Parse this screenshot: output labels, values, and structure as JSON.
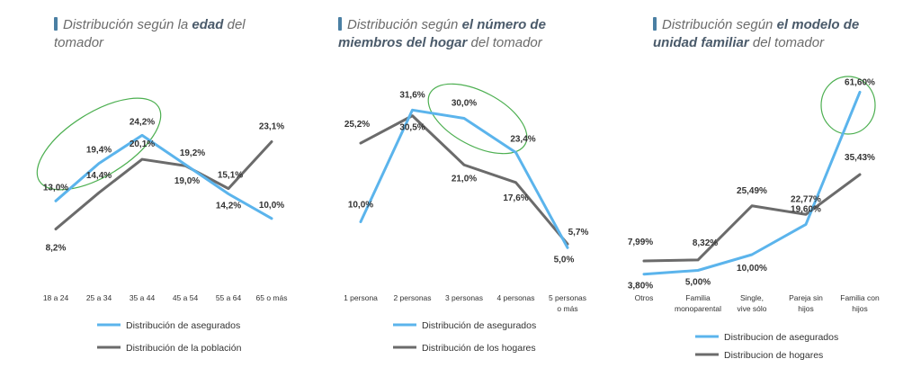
{
  "colors": {
    "asegurados": "#5bb4ec",
    "poblacion": "#6b6b6b",
    "highlight": "#4caf50"
  },
  "chart_data": [
    {
      "type": "line",
      "title": {
        "pre": "Distribución según la ",
        "bold": "edad",
        "post": " del tomador"
      },
      "categories": [
        "18 a 24",
        "25 a 34",
        "35 a 44",
        "45 a 54",
        "55 a 64",
        "65 o más"
      ],
      "series": [
        {
          "name": "Distribución de asegurados",
          "values": [
            13.0,
            19.4,
            24.2,
            19.2,
            14.2,
            10.0
          ],
          "labels": [
            "13,0%",
            "19,4%",
            "24,2%",
            "19,2%",
            "14,2%",
            "10,0%"
          ]
        },
        {
          "name": "Distribución de la población",
          "values": [
            8.2,
            14.4,
            20.1,
            19.0,
            15.1,
            23.1
          ],
          "labels": [
            "8,2%",
            "14,4%",
            "20,1%",
            "19,0%",
            "15,1%",
            "23,1%"
          ]
        }
      ],
      "ylim": [
        0,
        35
      ]
    },
    {
      "type": "line",
      "title": {
        "pre": "Distribución según ",
        "bold": "el número de miembros del hogar",
        "post": " del tomador"
      },
      "categories": [
        "1 persona",
        "2 personas",
        "3 personas",
        "4 personas",
        "5 personas o más"
      ],
      "series": [
        {
          "name": "Distribución de asegurados",
          "values": [
            10.0,
            31.6,
            30.0,
            23.4,
            5.0
          ],
          "labels": [
            "10,0%",
            "31,6%",
            "30,0%",
            "23,4%",
            "5,0%"
          ]
        },
        {
          "name": "Distribución de los hogares",
          "values": [
            25.2,
            30.5,
            21.0,
            17.6,
            5.7
          ],
          "labels": [
            "25,2%",
            "30,5%",
            "21,0%",
            "17,6%",
            "5,7%"
          ]
        }
      ],
      "ylim": [
        0,
        40
      ]
    },
    {
      "type": "line",
      "title": {
        "pre": "Distribución según ",
        "bold": "el modelo de unidad familiar",
        "post": " del tomador"
      },
      "categories": [
        "Otros",
        "Familia monoparental",
        "Single, vive sólo",
        "Pareja sin hijos",
        "Familia con hijos"
      ],
      "series": [
        {
          "name": "Distribucion de asegurados",
          "values": [
            3.8,
            5.0,
            10.0,
            19.6,
            61.6
          ],
          "labels": [
            "3,80%",
            "5,00%",
            "10,00%",
            "19,60%",
            "61,60%"
          ]
        },
        {
          "name": "Distribucion de hogares",
          "values": [
            7.99,
            8.32,
            25.49,
            22.77,
            35.43
          ],
          "labels": [
            "7,99%",
            "8,32%",
            "25,49%",
            "22,77%",
            "35,43%"
          ]
        }
      ],
      "ylim": [
        0,
        68
      ]
    }
  ]
}
